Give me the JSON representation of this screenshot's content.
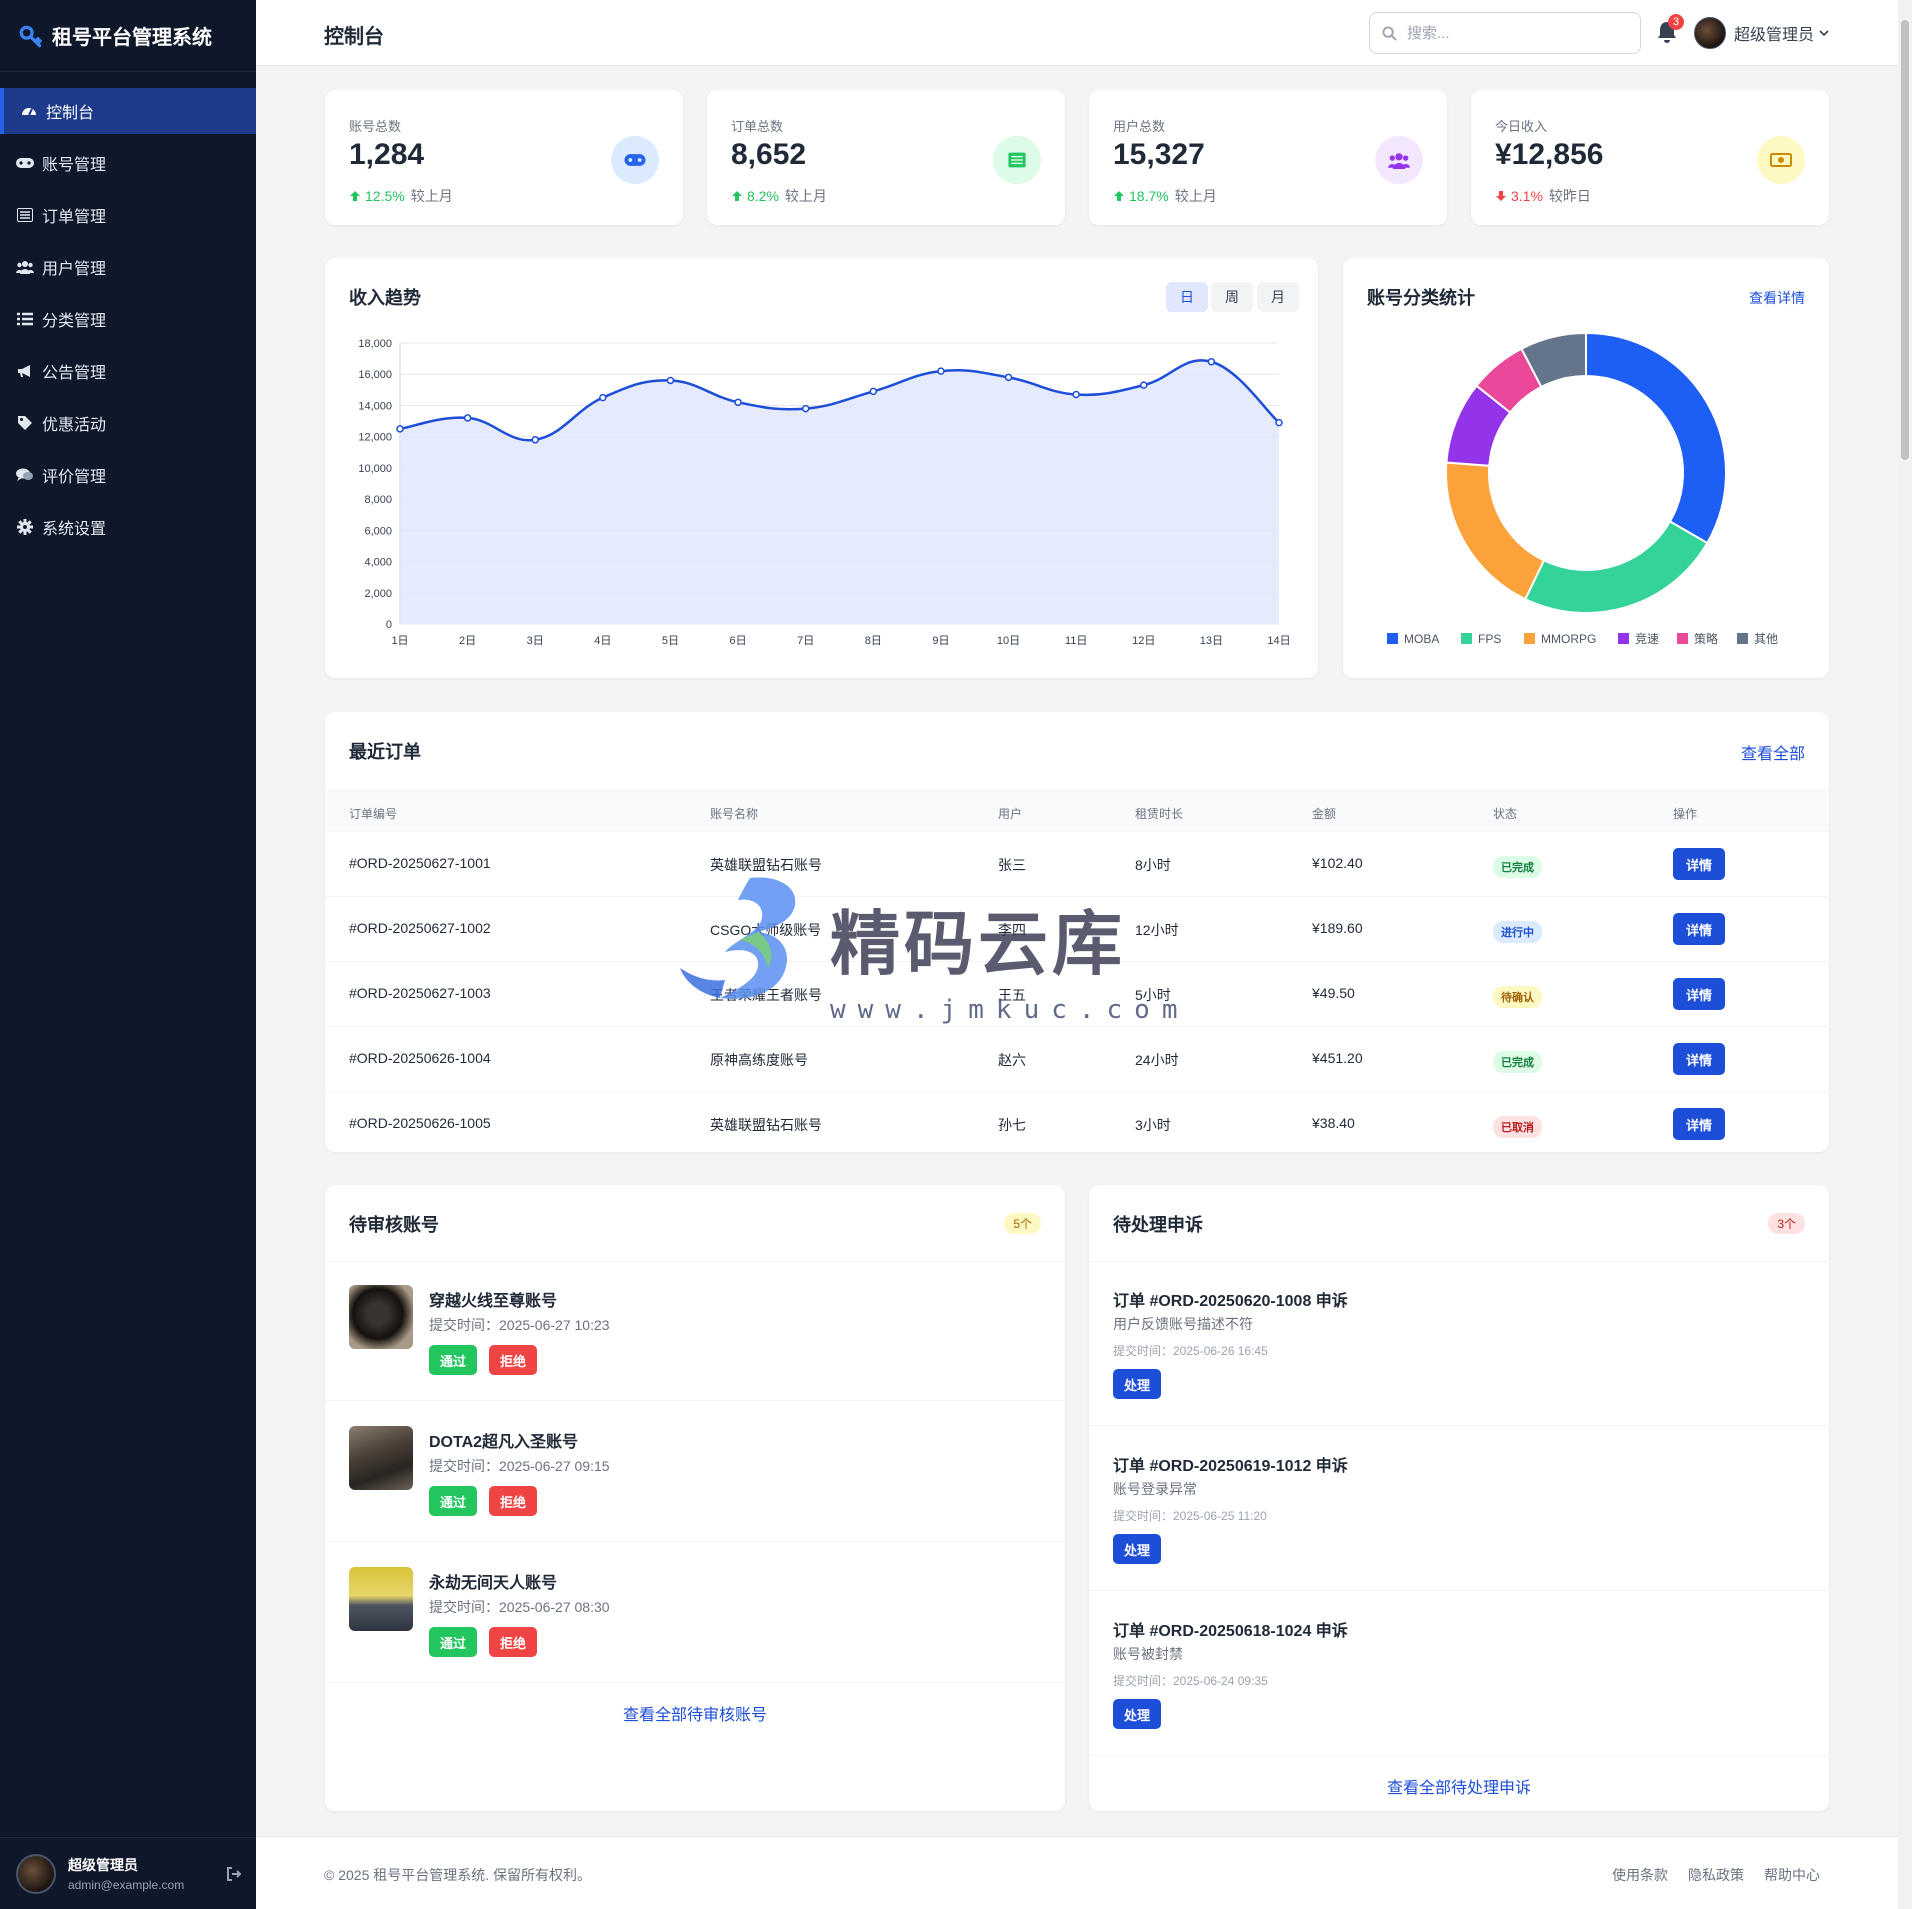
{
  "app": {
    "title": "租号平台管理系统"
  },
  "sidebar": {
    "items": [
      {
        "label": "控制台",
        "icon": "dashboard-icon"
      },
      {
        "label": "账号管理",
        "icon": "gamepad-icon"
      },
      {
        "label": "订单管理",
        "icon": "list-alt-icon"
      },
      {
        "label": "用户管理",
        "icon": "users-icon"
      },
      {
        "label": "分类管理",
        "icon": "list-icon"
      },
      {
        "label": "公告管理",
        "icon": "megaphone-icon"
      },
      {
        "label": "优惠活动",
        "icon": "tags-icon"
      },
      {
        "label": "评价管理",
        "icon": "comments-icon"
      },
      {
        "label": "系统设置",
        "icon": "cog-icon"
      }
    ],
    "user": {
      "name": "超级管理员",
      "email": "admin@example.com"
    }
  },
  "header": {
    "title": "控制台",
    "search_placeholder": "搜索...",
    "notifications": "3",
    "user_name": "超级管理员"
  },
  "stats": [
    {
      "label": "账号总数",
      "value": "1,284",
      "change": "12.5%",
      "trend": "up",
      "compare": "较上月",
      "icon": "gamepad-icon",
      "color": "#2563eb",
      "bg": "#dbeafe"
    },
    {
      "label": "订单总数",
      "value": "8,652",
      "change": "8.2%",
      "trend": "up",
      "compare": "较上月",
      "icon": "list-alt-icon",
      "color": "#22c55e",
      "bg": "#dcfce7"
    },
    {
      "label": "用户总数",
      "value": "15,327",
      "change": "18.7%",
      "trend": "up",
      "compare": "较上月",
      "icon": "users-icon",
      "color": "#9333ea",
      "bg": "#f3e8ff"
    },
    {
      "label": "今日收入",
      "value": "¥12,856",
      "change": "3.1%",
      "trend": "down",
      "compare": "较昨日",
      "icon": "money-icon",
      "color": "#ca8a04",
      "bg": "#fef9c3"
    }
  ],
  "revenue": {
    "title": "收入趋势",
    "tabs": [
      "日",
      "周",
      "月"
    ],
    "active_tab": "日"
  },
  "category": {
    "title": "账号分类统计",
    "link": "查看详情"
  },
  "chart_data": [
    {
      "type": "area",
      "title": "收入趋势",
      "categories": [
        "1日",
        "2日",
        "3日",
        "4日",
        "5日",
        "6日",
        "7日",
        "8日",
        "9日",
        "10日",
        "11日",
        "12日",
        "13日",
        "14日"
      ],
      "values": [
        12500,
        13200,
        11800,
        14500,
        15600,
        14200,
        13800,
        14900,
        16200,
        15800,
        14700,
        15300,
        16800,
        12900
      ],
      "ylim": [
        0,
        18000
      ],
      "yticks": [
        "0",
        "2,000",
        "4,000",
        "6,000",
        "8,000",
        "10,000",
        "12,000",
        "14,000",
        "16,000",
        "18,000"
      ],
      "color": "#1d4ed8",
      "fill": "#e0e7fb",
      "grid": true
    },
    {
      "type": "pie",
      "title": "账号分类统计",
      "labels": [
        "MOBA",
        "FPS",
        "MMORPG",
        "竞速",
        "策略",
        "其他"
      ],
      "values": [
        35,
        25,
        20,
        10,
        7,
        8
      ],
      "colors": [
        "#1d5ef5",
        "#34d399",
        "#fba33a",
        "#9333ea",
        "#ec4899",
        "#64748b"
      ],
      "legend": "bottom"
    }
  ],
  "orders": {
    "title": "最近订单",
    "link": "查看全部",
    "columns": [
      "订单编号",
      "账号名称",
      "用户",
      "租赁时长",
      "金额",
      "状态",
      "操作"
    ],
    "rows": [
      {
        "id": "#ORD-20250627-1001",
        "account": "英雄联盟钻石账号",
        "user": "张三",
        "duration": "8小时",
        "amount": "¥102.40",
        "status": "已完成",
        "status_color": "#15803d",
        "status_bg": "#dcfce7",
        "action": "详情"
      },
      {
        "id": "#ORD-20250627-1002",
        "account": "CSGO大师级账号",
        "user": "李四",
        "duration": "12小时",
        "amount": "¥189.60",
        "status": "进行中",
        "status_color": "#1d4ed8",
        "status_bg": "#dbeafe",
        "action": "详情"
      },
      {
        "id": "#ORD-20250627-1003",
        "account": "王者荣耀王者账号",
        "user": "王五",
        "duration": "5小时",
        "amount": "¥49.50",
        "status": "待确认",
        "status_color": "#a16207",
        "status_bg": "#fef9c3",
        "action": "详情"
      },
      {
        "id": "#ORD-20250626-1004",
        "account": "原神高练度账号",
        "user": "赵六",
        "duration": "24小时",
        "amount": "¥451.20",
        "status": "已完成",
        "status_color": "#15803d",
        "status_bg": "#dcfce7",
        "action": "详情"
      },
      {
        "id": "#ORD-20250626-1005",
        "account": "英雄联盟钻石账号",
        "user": "孙七",
        "duration": "3小时",
        "amount": "¥38.40",
        "status": "已取消",
        "status_color": "#b91c1c",
        "status_bg": "#fee2e2",
        "action": "详情"
      }
    ]
  },
  "pending_accounts": {
    "title": "待审核账号",
    "count": "5个",
    "items": [
      {
        "name": "穿越火线至尊账号",
        "time": "提交时间：2025-06-27 10:23",
        "approve": "通过",
        "reject": "拒绝"
      },
      {
        "name": "DOTA2超凡入圣账号",
        "time": "提交时间：2025-06-27 09:15",
        "approve": "通过",
        "reject": "拒绝"
      },
      {
        "name": "永劫无间天人账号",
        "time": "提交时间：2025-06-27 08:30",
        "approve": "通过",
        "reject": "拒绝"
      }
    ],
    "link": "查看全部待审核账号"
  },
  "complaints": {
    "title": "待处理申诉",
    "count": "3个",
    "items": [
      {
        "title": "订单 #ORD-20250620-1008 申诉",
        "desc": "用户反馈账号描述不符",
        "time": "提交时间：2025-06-26 16:45",
        "action": "处理"
      },
      {
        "title": "订单 #ORD-20250619-1012 申诉",
        "desc": "账号登录异常",
        "time": "提交时间：2025-06-25 11:20",
        "action": "处理"
      },
      {
        "title": "订单 #ORD-20250618-1024 申诉",
        "desc": "账号被封禁",
        "time": "提交时间：2025-06-24 09:35",
        "action": "处理"
      }
    ],
    "link": "查看全部待处理申诉"
  },
  "footer": {
    "copyright": "© 2025 租号平台管理系统. 保留所有权利。",
    "links": [
      "使用条款",
      "隐私政策",
      "帮助中心"
    ]
  },
  "watermark": {
    "text": "精码云库",
    "url": "www.jmkuc.com"
  }
}
